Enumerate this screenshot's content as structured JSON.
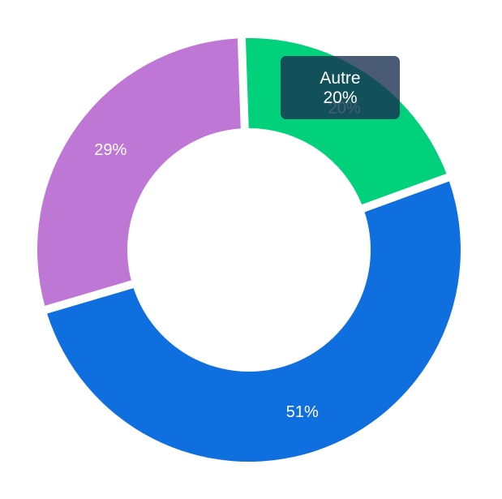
{
  "chart_data": {
    "type": "pie",
    "donut": true,
    "categories": [
      "Autre",
      "",
      ""
    ],
    "values": [
      20,
      51,
      29
    ],
    "value_labels": [
      "20%",
      "51%",
      "29%"
    ],
    "colors": [
      "#00d17a",
      "#106fdf",
      "#bf77d6"
    ],
    "legend": "none",
    "hovered_slice": 0
  },
  "tooltip": {
    "category": "Autre",
    "value": "20%"
  }
}
